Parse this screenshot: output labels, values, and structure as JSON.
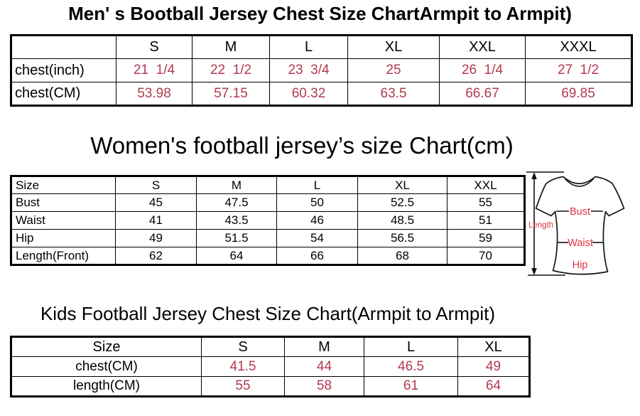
{
  "colors": {
    "value_red": "#b23a50",
    "diagram_red": "#e03540",
    "border": "#000000",
    "background": "#ffffff"
  },
  "sections": {
    "men": {
      "title": "Men' s Bootball Jersey Chest Size ChartArmpit to Armpit)",
      "table": {
        "header": [
          "",
          "S",
          "M",
          "L",
          "XL",
          "XXL",
          "XXXL"
        ],
        "rows": [
          {
            "label": "chest(inch)",
            "values": [
              "21  1/4",
              "22  1/2",
              "23  3/4",
              "25",
              "26  1/4",
              "27  1/2"
            ]
          },
          {
            "label": "chest(CM)",
            "values": [
              "53.98",
              "57.15",
              "60.32",
              "63.5",
              "66.67",
              "69.85"
            ]
          }
        ]
      }
    },
    "women": {
      "title": "Women's football jersey’s size Chart(cm)",
      "table": {
        "header": [
          "Size",
          "S",
          "M",
          "L",
          "XL",
          "XXL"
        ],
        "rows": [
          {
            "label": "Bust",
            "values": [
              "45",
              "47.5",
              "50",
              "52.5",
              "55"
            ]
          },
          {
            "label": "Waist",
            "values": [
              "41",
              "43.5",
              "46",
              "48.5",
              "51"
            ]
          },
          {
            "label": "Hip",
            "values": [
              "49",
              "51.5",
              "54",
              "56.5",
              "59"
            ]
          },
          {
            "label": "Length(Front)",
            "values": [
              "62",
              "64",
              "66",
              "68",
              "70"
            ]
          }
        ]
      },
      "diagram_labels": {
        "length": "Length",
        "bust": "Bust",
        "waist": "Waist",
        "hip": "Hip"
      }
    },
    "kids": {
      "title": "Kids Football Jersey Chest Size Chart(Armpit to Armpit)",
      "table": {
        "header": [
          "Size",
          "S",
          "M",
          "L",
          "XL"
        ],
        "rows": [
          {
            "label": "chest(CM)",
            "values": [
              "41.5",
              "44",
              "46.5",
              "49"
            ]
          },
          {
            "label": "length(CM)",
            "values": [
              "55",
              "58",
              "61",
              "64"
            ]
          }
        ]
      }
    }
  }
}
